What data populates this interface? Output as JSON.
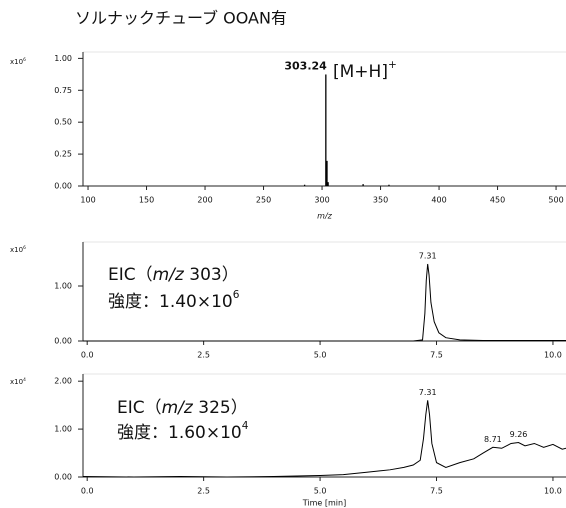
{
  "title": "ソルナックチューブ OOAN有",
  "chart_data": [
    {
      "type": "stem",
      "xlabel": "m/z",
      "y_multiplier": [
        {
          "text": "x10"
        },
        {
          "text": "6",
          "sup": true
        }
      ],
      "x": [
        285.1,
        303.24,
        304.24,
        305.2,
        335.1,
        357.2
      ],
      "values": [
        0.01,
        0.874,
        0.197,
        0.03,
        0.015,
        0.01
      ],
      "peak_labels": [
        303.24
      ],
      "peak_label_bold": true,
      "annotation": [
        [
          {
            "text": "[M+H]"
          },
          {
            "text": "+",
            "sup": true
          }
        ]
      ],
      "xlim": [
        95.7,
        508.5
      ],
      "ylim": [
        0,
        1.05
      ],
      "xticks": [
        100,
        150,
        200,
        250,
        300,
        350,
        400,
        450,
        500
      ],
      "yticks": [
        {
          "value": 0,
          "label": "0.00"
        },
        0.25,
        {
          "value": 0.5,
          "label": "0.50"
        },
        0.75,
        {
          "value": 1,
          "label": "1.00"
        }
      ],
      "color": "#000000"
    },
    {
      "type": "line",
      "y_multiplier": [
        {
          "text": "x10"
        },
        {
          "text": "6",
          "sup": true
        }
      ],
      "x": [
        -0.09,
        7.0,
        7.2,
        7.25,
        7.28,
        7.31,
        7.34,
        7.38,
        7.45,
        7.55,
        7.7,
        8.0,
        8.5,
        10.28
      ],
      "values": [
        0,
        0,
        0.02,
        0.5,
        1.1,
        1.4,
        1.2,
        0.7,
        0.35,
        0.15,
        0.06,
        0.02,
        0.01,
        0.01
      ],
      "peak_labels": [
        7.31
      ],
      "peak_label_bold": false,
      "annotation": [
        [
          {
            "text": "EIC（"
          },
          {
            "text": "m/z",
            "italic": true
          },
          {
            "text": " 303）"
          }
        ],
        [
          {
            "text": "強度：1.40×10"
          },
          {
            "text": "6",
            "sup": true
          }
        ]
      ],
      "xlim": [
        -0.09,
        10.28
      ],
      "ylim": [
        0,
        1.8
      ],
      "xticks": [
        {
          "value": 0,
          "label": "0.0"
        },
        2.5,
        {
          "value": 5,
          "label": "5.0"
        },
        7.5,
        {
          "value": 10,
          "label": "10.0"
        }
      ],
      "yticks": [
        {
          "value": 0,
          "label": "0.00"
        },
        {
          "value": 1,
          "label": "1.00"
        }
      ],
      "color": "#000000"
    },
    {
      "type": "line",
      "xlabel": "Time [min]",
      "y_multiplier": [
        {
          "text": "x10"
        },
        {
          "text": "4",
          "sup": true
        }
      ],
      "x": [
        -0.09,
        1,
        2,
        3,
        4,
        5,
        5.5,
        6,
        6.5,
        6.8,
        7.0,
        7.15,
        7.22,
        7.27,
        7.31,
        7.35,
        7.4,
        7.5,
        7.7,
        8.0,
        8.3,
        8.5,
        8.71,
        8.9,
        9.1,
        9.26,
        9.4,
        9.6,
        9.8,
        10.0,
        10.2,
        10.28
      ],
      "values": [
        0.01,
        0,
        0.01,
        0,
        0.01,
        0.03,
        0.05,
        0.1,
        0.15,
        0.2,
        0.25,
        0.35,
        0.8,
        1.3,
        1.6,
        1.3,
        0.7,
        0.3,
        0.2,
        0.3,
        0.38,
        0.5,
        0.62,
        0.6,
        0.7,
        0.72,
        0.65,
        0.7,
        0.62,
        0.68,
        0.58,
        0.6
      ],
      "peak_labels": [
        7.31,
        8.71,
        9.26
      ],
      "peak_label_bold": false,
      "annotation": [
        [
          {
            "text": "EIC（"
          },
          {
            "text": "m/z",
            "italic": true
          },
          {
            "text": " 325）"
          }
        ],
        [
          {
            "text": "強度：1.60×10"
          },
          {
            "text": "4",
            "sup": true
          }
        ]
      ],
      "xlim": [
        -0.09,
        10.28
      ],
      "ylim": [
        0,
        2.15
      ],
      "xticks": [
        {
          "value": 0,
          "label": "0.0"
        },
        2.5,
        {
          "value": 5,
          "label": "5.0"
        },
        7.5,
        {
          "value": 10,
          "label": "10.0"
        }
      ],
      "yticks": [
        {
          "value": 0,
          "label": "0.00"
        },
        {
          "value": 1,
          "label": "1.00"
        },
        {
          "value": 2,
          "label": "2.00"
        }
      ],
      "color": "#000000"
    }
  ]
}
